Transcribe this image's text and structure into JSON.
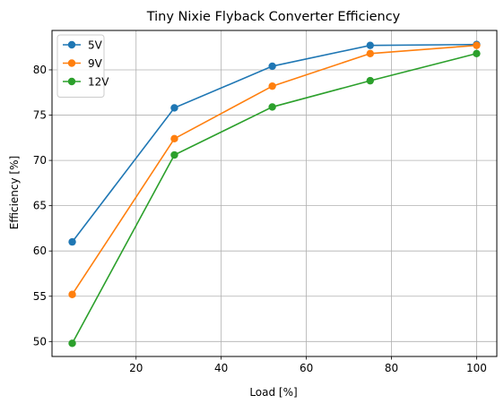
{
  "chart_data": {
    "type": "line",
    "title": "Tiny Nixie Flyback Converter Efficiency",
    "xlabel": "Load [%]",
    "ylabel": "Efficiency [%]",
    "xlim": [
      0.25,
      104.75
    ],
    "ylim": [
      48.35,
      84.35
    ],
    "xticks": [
      20,
      40,
      60,
      80,
      100
    ],
    "yticks": [
      50,
      55,
      60,
      65,
      70,
      75,
      80
    ],
    "grid": true,
    "legend_position": "top-left",
    "x": [
      5,
      29,
      52,
      75,
      100
    ],
    "series": [
      {
        "name": "5V",
        "color": "#1f77b4",
        "marker": "circle",
        "values": [
          61.0,
          75.8,
          80.4,
          82.7,
          82.8
        ]
      },
      {
        "name": "9V",
        "color": "#ff7f0e",
        "marker": "circle",
        "values": [
          55.2,
          72.4,
          78.2,
          81.8,
          82.7
        ]
      },
      {
        "name": "12V",
        "color": "#2ca02c",
        "marker": "circle",
        "values": [
          49.8,
          70.6,
          75.9,
          78.8,
          81.8
        ]
      }
    ]
  }
}
